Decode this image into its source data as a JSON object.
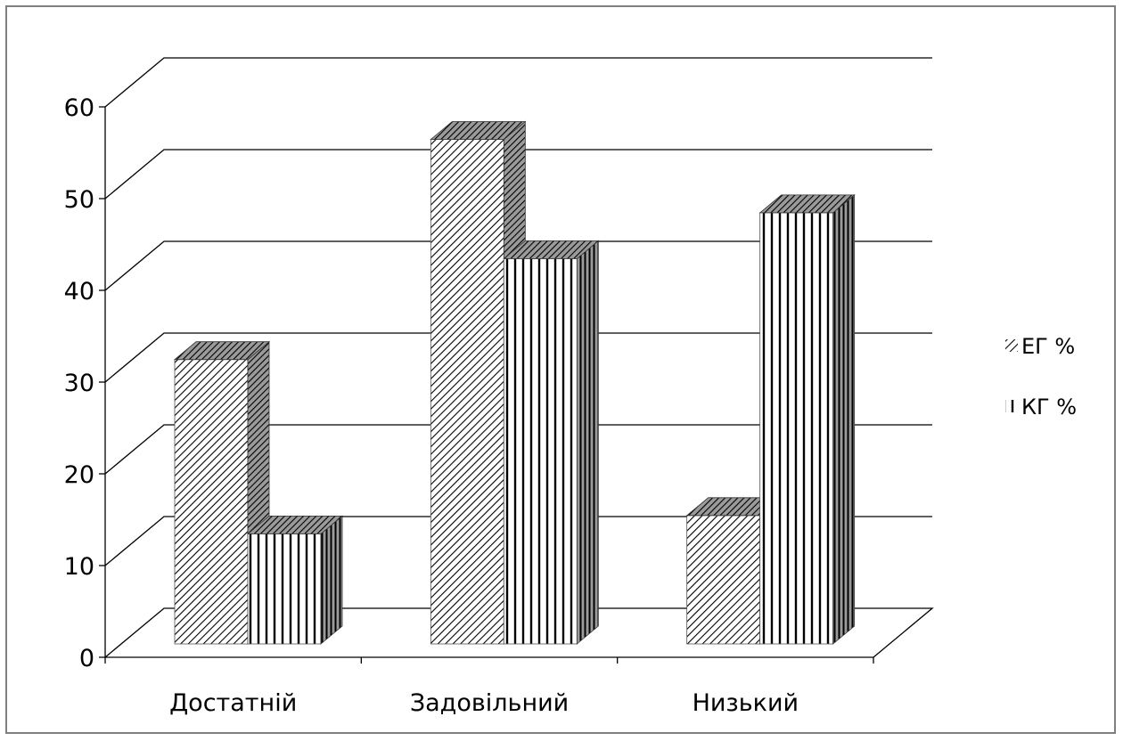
{
  "chart_data": {
    "type": "bar",
    "title": "",
    "xlabel": "",
    "ylabel": "",
    "categories": [
      "Достатній",
      "Задовільний",
      "Низький"
    ],
    "series": [
      {
        "name": "ЕГ %",
        "values": [
          31,
          55,
          14
        ],
        "pattern": "diagonal-hatch"
      },
      {
        "name": "КГ %",
        "values": [
          12,
          42,
          47
        ],
        "pattern": "vertical-lines"
      }
    ],
    "ylim": [
      0,
      60
    ],
    "yticks": [
      0,
      10,
      20,
      30,
      40,
      50,
      60
    ],
    "grid": true,
    "style": "3d-clustered-column",
    "legend_position": "right",
    "colors": {
      "frame": "#7f7f7f",
      "grid": "#000000",
      "ink": "#000000",
      "background": "#ffffff"
    }
  }
}
